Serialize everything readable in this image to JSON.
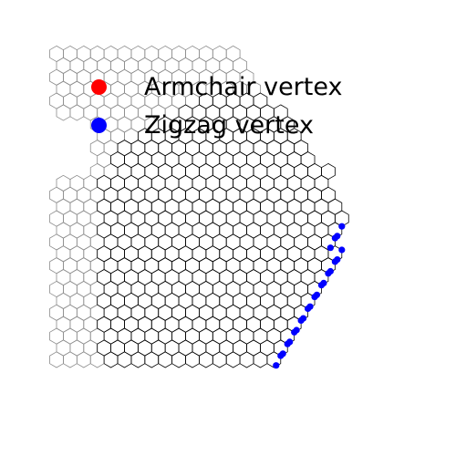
{
  "legend": {
    "items": [
      {
        "label": "Armchair vertex",
        "color": "#ff0000",
        "icon": "red-circle-marker"
      },
      {
        "label": "Zigzag vertex",
        "color": "#0000ff",
        "icon": "blue-circle-marker"
      }
    ]
  },
  "colors": {
    "background": "#ffffff",
    "sample_lattice": "#000000",
    "background_lattice": "#8c8c8c",
    "zigzag_vertex": "#0000ff",
    "armchair_vertex": "#ff0000"
  }
}
